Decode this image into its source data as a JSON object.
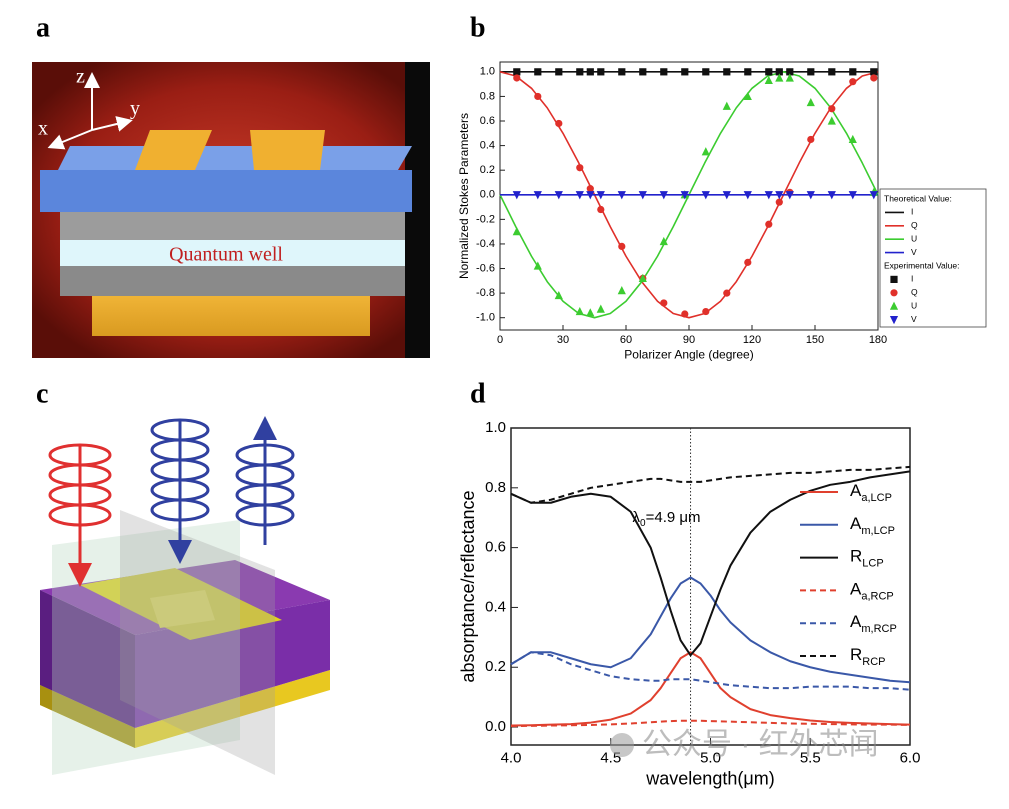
{
  "panels": {
    "a": "a",
    "b": "b",
    "c": "c",
    "d": "d"
  },
  "panel_a": {
    "axis_z": "z",
    "axis_y": "y",
    "axis_x": "x",
    "layer_label": "Quantum well"
  },
  "watermark": "公众号 · 红外芯闻",
  "chart_data": [
    {
      "type": "line",
      "xlabel": "Polarizer Angle (degree)",
      "ylabel": "Normalized Stokes Parameters",
      "xlim": [
        0,
        180
      ],
      "xticks": [
        0,
        30,
        60,
        90,
        120,
        150,
        180
      ],
      "ylim": [
        -1.1,
        1.08
      ],
      "yticks": [
        {
          "value": -1,
          "label": "-1.0"
        },
        -0.8,
        -0.6,
        -0.4,
        -0.2,
        {
          "value": 0,
          "label": "0.0"
        },
        0.2,
        0.4,
        0.6,
        0.8,
        {
          "value": 1,
          "label": "1.0"
        }
      ],
      "legend_titles": [
        "Theoretical Value:",
        "Experimental Value:"
      ],
      "series": [
        {
          "name": "I",
          "color": "#111111",
          "style": "line",
          "x": [
            0,
            180
          ],
          "values": [
            1,
            1
          ]
        },
        {
          "name": "Q",
          "color": "#e0302a",
          "style": "line",
          "x": [
            0,
            7.5,
            15,
            22.5,
            30,
            37.5,
            45,
            52.5,
            60,
            67.5,
            75,
            82.5,
            90,
            97.5,
            105,
            112.5,
            120,
            127.5,
            135,
            142.5,
            150,
            157.5,
            165,
            172.5,
            180
          ],
          "values": [
            1,
            0.966,
            0.866,
            0.707,
            0.5,
            0.259,
            0,
            -0.259,
            -0.5,
            -0.707,
            -0.866,
            -0.966,
            -1,
            -0.966,
            -0.866,
            -0.707,
            -0.5,
            -0.259,
            0,
            0.259,
            0.5,
            0.707,
            0.866,
            0.966,
            1
          ]
        },
        {
          "name": "U",
          "color": "#3ccc30",
          "style": "line",
          "x": [
            0,
            7.5,
            15,
            22.5,
            30,
            37.5,
            45,
            52.5,
            60,
            67.5,
            75,
            82.5,
            90,
            97.5,
            105,
            112.5,
            120,
            127.5,
            135,
            142.5,
            150,
            157.5,
            165,
            172.5,
            180
          ],
          "values": [
            0,
            -0.259,
            -0.5,
            -0.707,
            -0.866,
            -0.966,
            -1,
            -0.966,
            -0.866,
            -0.707,
            -0.5,
            -0.259,
            0,
            0.259,
            0.5,
            0.707,
            0.866,
            0.966,
            1,
            0.966,
            0.866,
            0.707,
            0.5,
            0.259,
            0
          ]
        },
        {
          "name": "V",
          "color": "#2222cc",
          "style": "line",
          "x": [
            0,
            180
          ],
          "values": [
            0,
            0
          ]
        },
        {
          "name": "I",
          "color": "#111111",
          "style": "markers",
          "marker": "square",
          "x": [
            8,
            18,
            28,
            38,
            43,
            48,
            58,
            68,
            78,
            88,
            98,
            108,
            118,
            128,
            133,
            138,
            148,
            158,
            168,
            178
          ],
          "values": [
            1,
            1,
            1,
            1,
            1,
            1,
            1,
            1,
            1,
            1,
            1,
            1,
            1,
            1,
            1,
            1,
            1,
            1,
            1,
            1
          ]
        },
        {
          "name": "Q",
          "color": "#e0302a",
          "style": "markers",
          "marker": "circle",
          "x": [
            8,
            18,
            28,
            38,
            43,
            48,
            58,
            68,
            78,
            88,
            98,
            108,
            118,
            128,
            133,
            138,
            148,
            158,
            168,
            178
          ],
          "values": [
            0.95,
            0.8,
            0.58,
            0.22,
            0.05,
            -0.12,
            -0.42,
            -0.68,
            -0.88,
            -0.97,
            -0.95,
            -0.8,
            -0.55,
            -0.24,
            -0.06,
            0.02,
            0.45,
            0.7,
            0.92,
            0.95
          ]
        },
        {
          "name": "U",
          "color": "#3ccc30",
          "style": "markers",
          "marker": "triangle-up",
          "x": [
            8,
            18,
            28,
            38,
            43,
            48,
            58,
            68,
            78,
            88,
            98,
            108,
            118,
            128,
            133,
            138,
            148,
            158,
            168,
            178
          ],
          "values": [
            -0.3,
            -0.58,
            -0.82,
            -0.95,
            -0.96,
            -0.93,
            -0.78,
            -0.68,
            -0.38,
            0,
            0.35,
            0.72,
            0.8,
            0.93,
            0.95,
            0.95,
            0.75,
            0.6,
            0.45,
            0.02
          ]
        },
        {
          "name": "V",
          "color": "#2222cc",
          "style": "markers",
          "marker": "triangle-down",
          "x": [
            8,
            18,
            28,
            38,
            43,
            48,
            58,
            68,
            78,
            88,
            98,
            108,
            118,
            128,
            133,
            138,
            148,
            158,
            168,
            178
          ],
          "values": [
            0,
            0,
            0,
            0,
            0,
            0,
            0,
            0,
            0,
            0,
            0,
            0,
            0,
            0,
            0,
            0,
            0,
            0,
            0,
            0
          ]
        }
      ]
    },
    {
      "type": "line",
      "xlabel": "wavelength(μm)",
      "ylabel": "absorptance/reflectance",
      "xlim": [
        4,
        6
      ],
      "xticks": [
        {
          "value": 4,
          "label": "4.0"
        },
        4.5,
        {
          "value": 5,
          "label": "5.0"
        },
        5.5,
        {
          "value": 6,
          "label": "6.0"
        }
      ],
      "ylim": [
        -0.06,
        1
      ],
      "yticks": [
        {
          "value": 0,
          "label": "0.0"
        },
        0.2,
        0.4,
        0.6,
        0.8,
        {
          "value": 1,
          "label": "1.0"
        }
      ],
      "annotation": {
        "text": "λ",
        "sub": "0",
        "text2": "=4.9 μm",
        "x": 4.9
      },
      "x": [
        4,
        4.1,
        4.2,
        4.3,
        4.4,
        4.5,
        4.6,
        4.7,
        4.75,
        4.8,
        4.85,
        4.9,
        4.95,
        5,
        5.05,
        5.1,
        5.2,
        5.3,
        5.4,
        5.5,
        5.6,
        5.7,
        5.8,
        5.9,
        6
      ],
      "series": [
        {
          "name": "A",
          "subscript": "a,LCP",
          "color": "#e0402e",
          "dashed": false,
          "values": [
            0.005,
            0.006,
            0.008,
            0.01,
            0.015,
            0.025,
            0.045,
            0.09,
            0.13,
            0.18,
            0.23,
            0.25,
            0.23,
            0.18,
            0.13,
            0.1,
            0.06,
            0.04,
            0.03,
            0.022,
            0.017,
            0.014,
            0.012,
            0.01,
            0.008
          ]
        },
        {
          "name": "A",
          "subscript": "m,LCP",
          "color": "#3a58a8",
          "dashed": false,
          "values": [
            0.21,
            0.25,
            0.25,
            0.23,
            0.21,
            0.2,
            0.23,
            0.31,
            0.37,
            0.43,
            0.48,
            0.5,
            0.48,
            0.44,
            0.39,
            0.35,
            0.29,
            0.25,
            0.22,
            0.2,
            0.185,
            0.175,
            0.165,
            0.155,
            0.15
          ]
        },
        {
          "name": "R",
          "subscript": "LCP",
          "color": "#111111",
          "dashed": false,
          "values": [
            0.78,
            0.75,
            0.75,
            0.77,
            0.78,
            0.77,
            0.72,
            0.6,
            0.5,
            0.39,
            0.29,
            0.24,
            0.28,
            0.37,
            0.46,
            0.54,
            0.65,
            0.72,
            0.76,
            0.79,
            0.81,
            0.82,
            0.835,
            0.845,
            0.855
          ]
        },
        {
          "name": "A",
          "subscript": "a,RCP",
          "color": "#e0402e",
          "dashed": true,
          "values": [
            0.003,
            0.004,
            0.005,
            0.006,
            0.007,
            0.009,
            0.012,
            0.016,
            0.018,
            0.02,
            0.021,
            0.021,
            0.021,
            0.02,
            0.019,
            0.018,
            0.016,
            0.014,
            0.012,
            0.011,
            0.01,
            0.009,
            0.008,
            0.008,
            0.007
          ]
        },
        {
          "name": "A",
          "subscript": "m,RCP",
          "color": "#3a58a8",
          "dashed": true,
          "values": [
            0.21,
            0.25,
            0.24,
            0.21,
            0.19,
            0.17,
            0.16,
            0.155,
            0.155,
            0.16,
            0.16,
            0.16,
            0.155,
            0.15,
            0.145,
            0.14,
            0.135,
            0.13,
            0.13,
            0.135,
            0.135,
            0.135,
            0.13,
            0.13,
            0.125
          ]
        },
        {
          "name": "R",
          "subscript": "RCP",
          "color": "#111111",
          "dashed": true,
          "values": [
            0.78,
            0.75,
            0.76,
            0.78,
            0.8,
            0.81,
            0.82,
            0.83,
            0.83,
            0.825,
            0.82,
            0.82,
            0.82,
            0.825,
            0.83,
            0.835,
            0.84,
            0.845,
            0.85,
            0.85,
            0.855,
            0.86,
            0.86,
            0.865,
            0.87
          ]
        }
      ]
    }
  ]
}
